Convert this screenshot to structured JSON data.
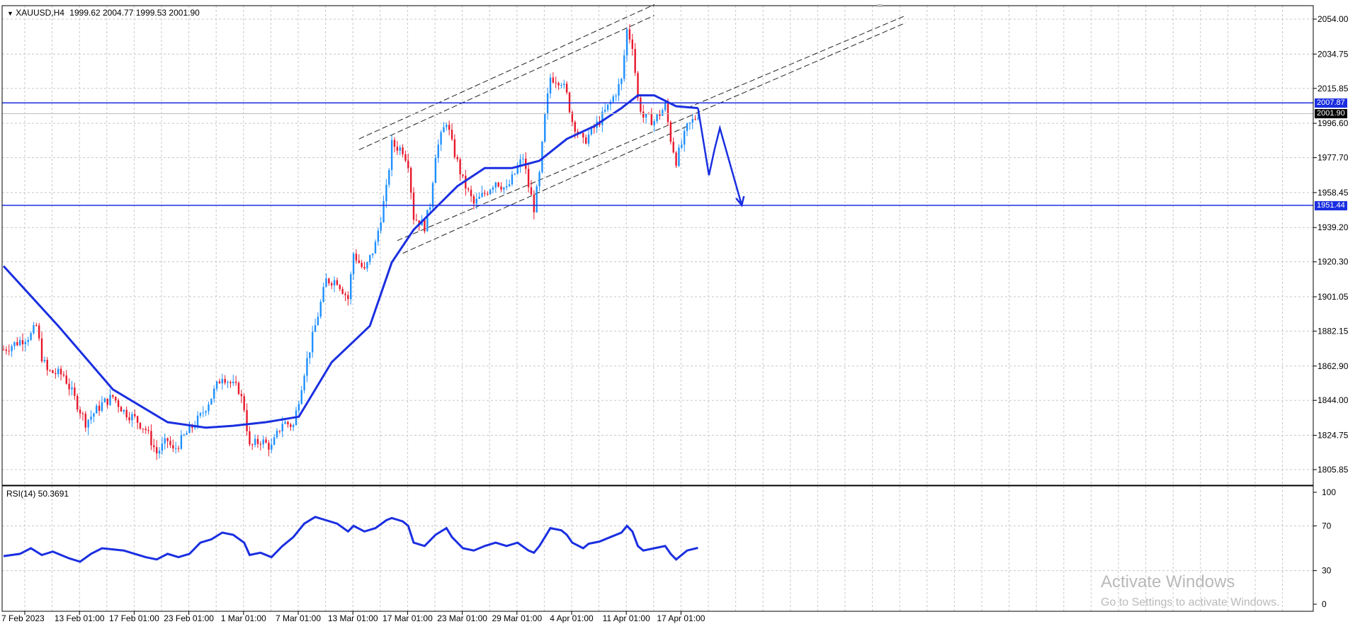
{
  "header": {
    "symbol": "XAUUSD,H4",
    "ohlc": "1999.62 2004.77 1999.53 2001.90"
  },
  "rsi_label": "RSI(14) 50.3691",
  "price_tags": {
    "resistance": "2007.87",
    "current": "2001.90",
    "support": "1951.44"
  },
  "watermark": {
    "title": "Activate Windows",
    "subtitle": "Go to Settings to activate Windows."
  },
  "colors": {
    "bull": "#1e90ff",
    "bear": "#e8182c",
    "ma": "#1a2fe0",
    "level": "#1a2fe0",
    "grid": "#c8c8c8"
  },
  "chart_data": [
    {
      "type": "candlestick",
      "symbol": "XAUUSD",
      "timeframe": "H4",
      "ylim": [
        1800,
        2060
      ],
      "y_ticks": [
        2054.0,
        2034.75,
        2015.85,
        1996.6,
        1977.7,
        1958.45,
        1939.2,
        1920.3,
        1901.05,
        1882.15,
        1862.9,
        1844.0,
        1824.75,
        1805.85
      ],
      "x_tick_labels": [
        "7 Feb 2023",
        "13 Feb 01:00",
        "17 Feb 01:00",
        "23 Feb 01:00",
        "1 Mar 01:00",
        "7 Mar 01:00",
        "13 Mar 01:00",
        "17 Mar 01:00",
        "23 Mar 01:00",
        "29 Mar 01:00",
        "4 Apr 01:00",
        "11 Apr 01:00",
        "17 Apr 01:00"
      ],
      "close_path": [
        [
          0,
          1872
        ],
        [
          10,
          1880
        ],
        [
          12,
          1885
        ],
        [
          14,
          1868
        ],
        [
          16,
          1860
        ],
        [
          22,
          1858
        ],
        [
          26,
          1845
        ],
        [
          30,
          1832
        ],
        [
          36,
          1842
        ],
        [
          40,
          1846
        ],
        [
          44,
          1838
        ],
        [
          48,
          1834
        ],
        [
          52,
          1828
        ],
        [
          56,
          1815
        ],
        [
          60,
          1822
        ],
        [
          62,
          1816
        ],
        [
          66,
          1824
        ],
        [
          72,
          1835
        ],
        [
          76,
          1846
        ],
        [
          80,
          1858
        ],
        [
          84,
          1852
        ],
        [
          86,
          1850
        ],
        [
          88,
          1840
        ],
        [
          90,
          1818
        ],
        [
          94,
          1822
        ],
        [
          98,
          1818
        ],
        [
          102,
          1832
        ],
        [
          106,
          1830
        ],
        [
          110,
          1860
        ],
        [
          114,
          1885
        ],
        [
          118,
          1910
        ],
        [
          122,
          1910
        ],
        [
          126,
          1900
        ],
        [
          128,
          1925
        ],
        [
          132,
          1915
        ],
        [
          136,
          1930
        ],
        [
          140,
          1960
        ],
        [
          142,
          1985
        ],
        [
          146,
          1982
        ],
        [
          148,
          1975
        ],
        [
          150,
          1945
        ],
        [
          154,
          1940
        ],
        [
          156,
          1952
        ],
        [
          158,
          1980
        ],
        [
          162,
          1998
        ],
        [
          164,
          1985
        ],
        [
          168,
          1965
        ],
        [
          172,
          1952
        ],
        [
          176,
          1958
        ],
        [
          180,
          1965
        ],
        [
          184,
          1960
        ],
        [
          188,
          1972
        ],
        [
          190,
          1978
        ],
        [
          192,
          1962
        ],
        [
          194,
          1950
        ],
        [
          196,
          1968
        ],
        [
          198,
          2000
        ],
        [
          200,
          2022
        ],
        [
          204,
          2020
        ],
        [
          206,
          2012
        ],
        [
          208,
          1998
        ],
        [
          212,
          1986
        ],
        [
          214,
          1990
        ],
        [
          218,
          1998
        ],
        [
          222,
          2008
        ],
        [
          226,
          2020
        ],
        [
          228,
          2048
        ],
        [
          230,
          2040
        ],
        [
          232,
          2010
        ],
        [
          234,
          2000
        ],
        [
          238,
          1998
        ],
        [
          242,
          2006
        ],
        [
          244,
          1988
        ],
        [
          246,
          1976
        ],
        [
          250,
          1994
        ],
        [
          254,
          2001.9
        ]
      ],
      "moving_average": [
        [
          0,
          1918
        ],
        [
          20,
          1885
        ],
        [
          40,
          1850
        ],
        [
          60,
          1832
        ],
        [
          74,
          1829
        ],
        [
          84,
          1830
        ],
        [
          96,
          1832
        ],
        [
          108,
          1835
        ],
        [
          120,
          1865
        ],
        [
          134,
          1885
        ],
        [
          142,
          1920
        ],
        [
          150,
          1938
        ],
        [
          158,
          1950
        ],
        [
          166,
          1962
        ],
        [
          176,
          1972
        ],
        [
          186,
          1972
        ],
        [
          196,
          1976
        ],
        [
          206,
          1988
        ],
        [
          216,
          1995
        ],
        [
          226,
          2005
        ],
        [
          232,
          2012
        ],
        [
          238,
          2012
        ],
        [
          246,
          2006
        ],
        [
          254,
          2005
        ]
      ],
      "horizontal_levels": [
        2007.87,
        1951.44
      ],
      "current_price": 2001.9,
      "forecast_path": [
        [
          254,
          2005
        ],
        [
          258,
          1968
        ],
        [
          260,
          1982
        ],
        [
          262,
          1994
        ],
        [
          270,
          1951.44
        ]
      ],
      "channels": [
        {
          "from": [
            130,
            1988
          ],
          "to": [
            238,
            2062
          ]
        },
        {
          "from": [
            130,
            1982
          ],
          "to": [
            238,
            2056
          ]
        },
        {
          "from": [
            144,
            1932
          ],
          "to": [
            250,
            2000
          ]
        },
        {
          "from": [
            146,
            1925
          ],
          "to": [
            250,
            1995
          ]
        },
        {
          "from": [
            250,
            2005
          ],
          "to": [
            330,
            2056
          ]
        },
        {
          "from": [
            250,
            2000
          ],
          "to": [
            330,
            2052
          ]
        }
      ]
    },
    {
      "type": "line",
      "name": "RSI(14)",
      "ylim": [
        0,
        100
      ],
      "y_ticks": [
        100,
        70,
        30,
        0
      ],
      "last_value": 50.3691,
      "points": [
        [
          0,
          43
        ],
        [
          6,
          45
        ],
        [
          10,
          50
        ],
        [
          14,
          44
        ],
        [
          18,
          47
        ],
        [
          24,
          41
        ],
        [
          28,
          38
        ],
        [
          32,
          45
        ],
        [
          36,
          50
        ],
        [
          40,
          49
        ],
        [
          44,
          48
        ],
        [
          48,
          45
        ],
        [
          52,
          42
        ],
        [
          56,
          40
        ],
        [
          60,
          45
        ],
        [
          64,
          42
        ],
        [
          68,
          45
        ],
        [
          72,
          55
        ],
        [
          76,
          58
        ],
        [
          80,
          64
        ],
        [
          84,
          62
        ],
        [
          88,
          55
        ],
        [
          90,
          44
        ],
        [
          94,
          46
        ],
        [
          98,
          42
        ],
        [
          102,
          52
        ],
        [
          106,
          60
        ],
        [
          110,
          72
        ],
        [
          114,
          78
        ],
        [
          118,
          75
        ],
        [
          122,
          72
        ],
        [
          126,
          65
        ],
        [
          128,
          70
        ],
        [
          132,
          65
        ],
        [
          136,
          68
        ],
        [
          140,
          75
        ],
        [
          142,
          77
        ],
        [
          146,
          74
        ],
        [
          148,
          70
        ],
        [
          150,
          55
        ],
        [
          154,
          52
        ],
        [
          158,
          62
        ],
        [
          162,
          68
        ],
        [
          164,
          60
        ],
        [
          168,
          50
        ],
        [
          172,
          48
        ],
        [
          176,
          52
        ],
        [
          180,
          55
        ],
        [
          184,
          52
        ],
        [
          188,
          55
        ],
        [
          192,
          48
        ],
        [
          194,
          46
        ],
        [
          196,
          52
        ],
        [
          198,
          60
        ],
        [
          200,
          68
        ],
        [
          204,
          66
        ],
        [
          206,
          62
        ],
        [
          208,
          55
        ],
        [
          212,
          50
        ],
        [
          214,
          54
        ],
        [
          218,
          56
        ],
        [
          222,
          60
        ],
        [
          226,
          64
        ],
        [
          228,
          70
        ],
        [
          230,
          65
        ],
        [
          232,
          52
        ],
        [
          234,
          48
        ],
        [
          238,
          50
        ],
        [
          242,
          52
        ],
        [
          244,
          45
        ],
        [
          246,
          40
        ],
        [
          250,
          48
        ],
        [
          254,
          50.37
        ]
      ]
    }
  ]
}
